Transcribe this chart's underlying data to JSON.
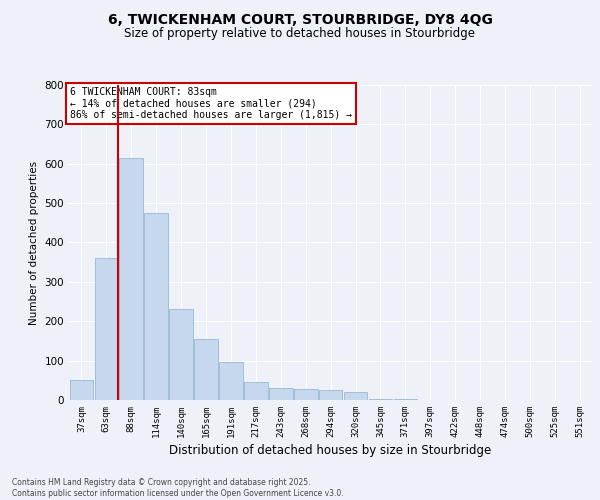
{
  "title_line1": "6, TWICKENHAM COURT, STOURBRIDGE, DY8 4QG",
  "title_line2": "Size of property relative to detached houses in Stourbridge",
  "xlabel": "Distribution of detached houses by size in Stourbridge",
  "ylabel": "Number of detached properties",
  "categories": [
    "37sqm",
    "63sqm",
    "88sqm",
    "114sqm",
    "140sqm",
    "165sqm",
    "191sqm",
    "217sqm",
    "243sqm",
    "268sqm",
    "294sqm",
    "320sqm",
    "345sqm",
    "371sqm",
    "397sqm",
    "422sqm",
    "448sqm",
    "474sqm",
    "500sqm",
    "525sqm",
    "551sqm"
  ],
  "values": [
    50,
    360,
    615,
    475,
    230,
    155,
    97,
    45,
    30,
    27,
    25,
    20,
    3,
    2,
    1,
    1,
    0,
    0,
    0,
    0,
    0
  ],
  "bar_color": "#c5d8ed",
  "bar_edge_color": "#8ab0cc",
  "background_color": "#eef2f8",
  "grid_color": "#ffffff",
  "property_line_x": 1.47,
  "annotation_text": "6 TWICKENHAM COURT: 83sqm\n← 14% of detached houses are smaller (294)\n86% of semi-detached houses are larger (1,815) →",
  "annotation_box_facecolor": "#ffffff",
  "annotation_box_edgecolor": "#cc0000",
  "line_color": "#cc0000",
  "footer_line1": "Contains HM Land Registry data © Crown copyright and database right 2025.",
  "footer_line2": "Contains public sector information licensed under the Open Government Licence v3.0.",
  "ylim": [
    0,
    800
  ],
  "yticks": [
    0,
    100,
    200,
    300,
    400,
    500,
    600,
    700,
    800
  ]
}
